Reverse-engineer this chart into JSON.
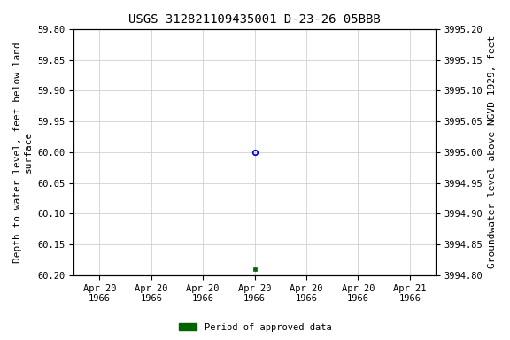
{
  "title": "USGS 312821109435001 D-23-26 05BBB",
  "ylabel_left": "Depth to water level, feet below land\nsurface",
  "ylabel_right": "Groundwater level above NGVD 1929, feet",
  "ylim_left": [
    59.8,
    60.2
  ],
  "ylim_right": [
    3994.8,
    3995.2
  ],
  "yticks_left": [
    59.8,
    59.85,
    59.9,
    59.95,
    60.0,
    60.05,
    60.1,
    60.15,
    60.2
  ],
  "yticks_right": [
    3994.8,
    3994.85,
    3994.9,
    3994.95,
    3995.0,
    3995.05,
    3995.1,
    3995.15,
    3995.2
  ],
  "xtick_labels": [
    "Apr 20\n1966",
    "Apr 20\n1966",
    "Apr 20\n1966",
    "Apr 20\n1966",
    "Apr 20\n1966",
    "Apr 20\n1966",
    "Apr 21\n1966"
  ],
  "blue_circle_value": 60.0,
  "green_square_value": 60.19,
  "blue_circle_color": "#0000cc",
  "green_square_color": "#006400",
  "legend_label": "Period of approved data",
  "background_color": "#ffffff",
  "grid_color": "#c8c8c8",
  "title_fontsize": 10,
  "axis_label_fontsize": 8,
  "tick_fontsize": 7.5,
  "font_family": "monospace"
}
